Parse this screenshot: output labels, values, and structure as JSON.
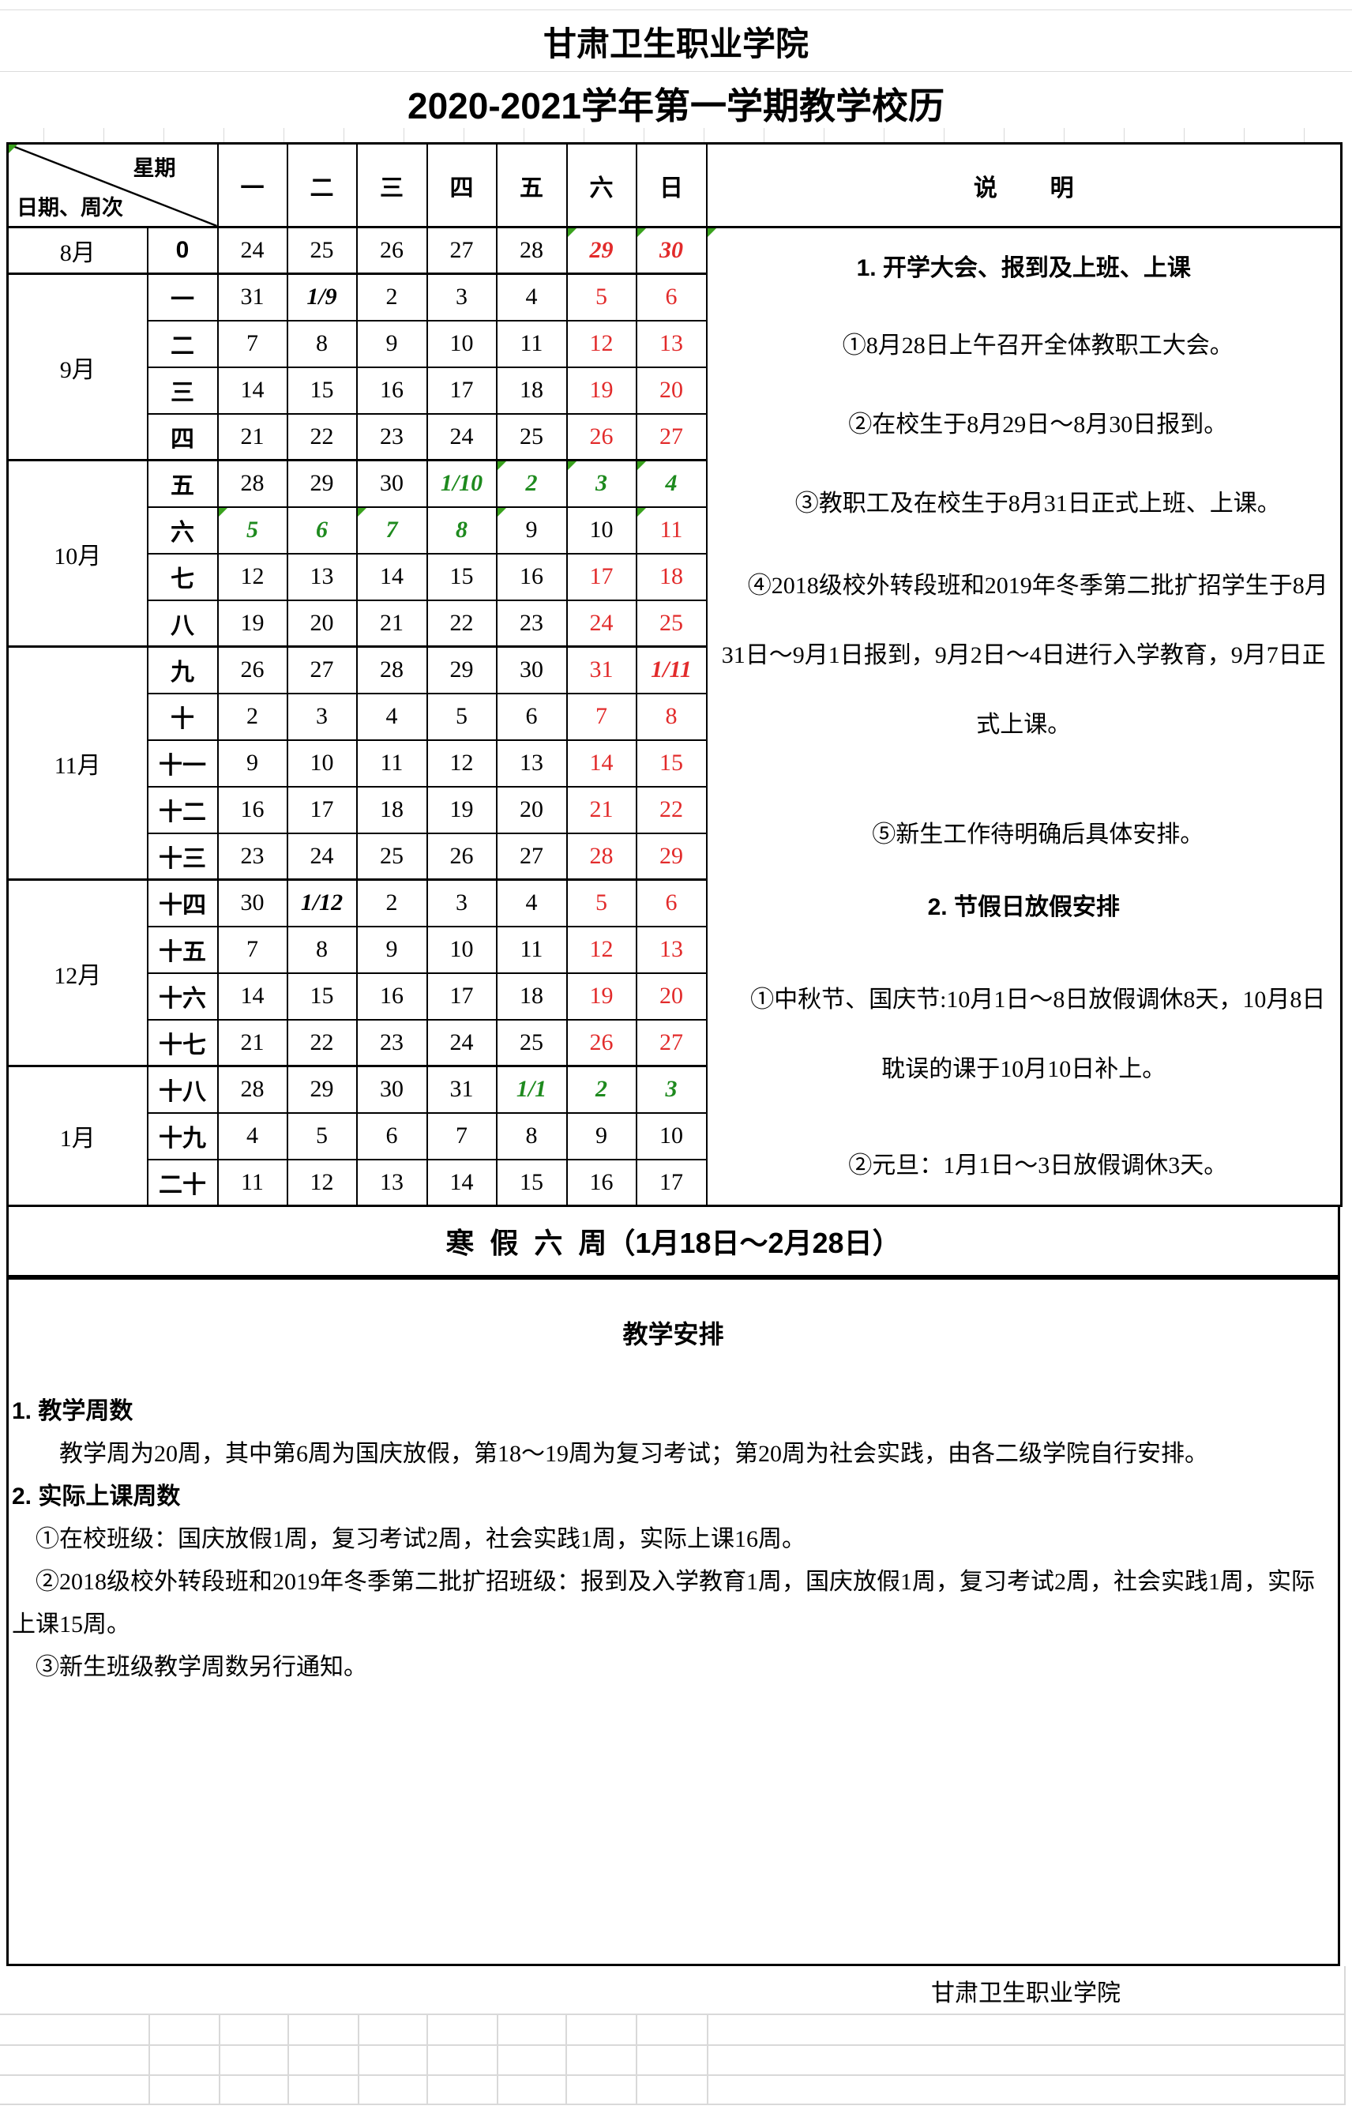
{
  "titles": {
    "school": "甘肃卫生职业学院",
    "calendar": "2020-2021学年第一学期教学校历"
  },
  "header": {
    "xingqi": "星期",
    "riqi_zhouci": "日期、周次",
    "days": [
      "一",
      "二",
      "三",
      "四",
      "五",
      "六",
      "日"
    ],
    "shuoming": "说        明"
  },
  "calendar": {
    "months": [
      {
        "label": "8月",
        "weeks": [
          {
            "w": "0",
            "d": [
              {
                "t": "24"
              },
              {
                "t": "25"
              },
              {
                "t": "26"
              },
              {
                "t": "27"
              },
              {
                "t": "28"
              },
              {
                "t": "29",
                "s": "ri",
                "m": 1
              },
              {
                "t": "30",
                "s": "ri",
                "m": 1
              }
            ]
          }
        ]
      },
      {
        "label": "9月",
        "weeks": [
          {
            "w": "一",
            "d": [
              {
                "t": "31"
              },
              {
                "t": "1/9",
                "s": "i"
              },
              {
                "t": "2"
              },
              {
                "t": "3"
              },
              {
                "t": "4"
              },
              {
                "t": "5",
                "s": "r"
              },
              {
                "t": "6",
                "s": "r"
              }
            ]
          },
          {
            "w": "二",
            "d": [
              {
                "t": "7"
              },
              {
                "t": "8"
              },
              {
                "t": "9"
              },
              {
                "t": "10"
              },
              {
                "t": "11"
              },
              {
                "t": "12",
                "s": "r"
              },
              {
                "t": "13",
                "s": "r"
              }
            ]
          },
          {
            "w": "三",
            "d": [
              {
                "t": "14"
              },
              {
                "t": "15"
              },
              {
                "t": "16"
              },
              {
                "t": "17"
              },
              {
                "t": "18"
              },
              {
                "t": "19",
                "s": "r"
              },
              {
                "t": "20",
                "s": "r"
              }
            ]
          },
          {
            "w": "四",
            "d": [
              {
                "t": "21"
              },
              {
                "t": "22"
              },
              {
                "t": "23"
              },
              {
                "t": "24"
              },
              {
                "t": "25"
              },
              {
                "t": "26",
                "s": "r"
              },
              {
                "t": "27",
                "s": "r"
              }
            ]
          }
        ]
      },
      {
        "label": "10月",
        "weeks": [
          {
            "w": "五",
            "d": [
              {
                "t": "28"
              },
              {
                "t": "29"
              },
              {
                "t": "30"
              },
              {
                "t": "1/10",
                "s": "gi"
              },
              {
                "t": "2",
                "s": "gi",
                "m": 1
              },
              {
                "t": "3",
                "s": "gi",
                "m": 1
              },
              {
                "t": "4",
                "s": "gi",
                "m": 1
              }
            ]
          },
          {
            "w": "六",
            "d": [
              {
                "t": "5",
                "s": "gi",
                "m": 1
              },
              {
                "t": "6",
                "s": "gi"
              },
              {
                "t": "7",
                "s": "gi",
                "m": 1
              },
              {
                "t": "8",
                "s": "gi"
              },
              {
                "t": "9",
                "m": 1
              },
              {
                "t": "10"
              },
              {
                "t": "11",
                "s": "r",
                "m": 1
              }
            ]
          },
          {
            "w": "七",
            "d": [
              {
                "t": "12"
              },
              {
                "t": "13"
              },
              {
                "t": "14"
              },
              {
                "t": "15"
              },
              {
                "t": "16"
              },
              {
                "t": "17",
                "s": "r"
              },
              {
                "t": "18",
                "s": "r"
              }
            ]
          },
          {
            "w": "八",
            "d": [
              {
                "t": "19"
              },
              {
                "t": "20"
              },
              {
                "t": "21"
              },
              {
                "t": "22"
              },
              {
                "t": "23"
              },
              {
                "t": "24",
                "s": "r"
              },
              {
                "t": "25",
                "s": "r"
              }
            ]
          }
        ]
      },
      {
        "label": "11月",
        "weeks": [
          {
            "w": "九",
            "d": [
              {
                "t": "26"
              },
              {
                "t": "27"
              },
              {
                "t": "28"
              },
              {
                "t": "29"
              },
              {
                "t": "30"
              },
              {
                "t": "31",
                "s": "r"
              },
              {
                "t": "1/11",
                "s": "ri"
              }
            ]
          },
          {
            "w": "十",
            "d": [
              {
                "t": "2"
              },
              {
                "t": "3"
              },
              {
                "t": "4"
              },
              {
                "t": "5"
              },
              {
                "t": "6"
              },
              {
                "t": "7",
                "s": "r"
              },
              {
                "t": "8",
                "s": "r"
              }
            ]
          },
          {
            "w": "十一",
            "d": [
              {
                "t": "9"
              },
              {
                "t": "10"
              },
              {
                "t": "11"
              },
              {
                "t": "12"
              },
              {
                "t": "13"
              },
              {
                "t": "14",
                "s": "r"
              },
              {
                "t": "15",
                "s": "r"
              }
            ]
          },
          {
            "w": "十二",
            "d": [
              {
                "t": "16"
              },
              {
                "t": "17"
              },
              {
                "t": "18"
              },
              {
                "t": "19"
              },
              {
                "t": "20"
              },
              {
                "t": "21",
                "s": "r"
              },
              {
                "t": "22",
                "s": "r"
              }
            ]
          },
          {
            "w": "十三",
            "d": [
              {
                "t": "23"
              },
              {
                "t": "24"
              },
              {
                "t": "25"
              },
              {
                "t": "26"
              },
              {
                "t": "27"
              },
              {
                "t": "28",
                "s": "r"
              },
              {
                "t": "29",
                "s": "r"
              }
            ]
          }
        ]
      },
      {
        "label": "12月",
        "weeks": [
          {
            "w": "十四",
            "d": [
              {
                "t": "30"
              },
              {
                "t": "1/12",
                "s": "i"
              },
              {
                "t": "2"
              },
              {
                "t": "3"
              },
              {
                "t": "4"
              },
              {
                "t": "5",
                "s": "r"
              },
              {
                "t": "6",
                "s": "r"
              }
            ]
          },
          {
            "w": "十五",
            "d": [
              {
                "t": "7"
              },
              {
                "t": "8"
              },
              {
                "t": "9"
              },
              {
                "t": "10"
              },
              {
                "t": "11"
              },
              {
                "t": "12",
                "s": "r"
              },
              {
                "t": "13",
                "s": "r"
              }
            ]
          },
          {
            "w": "十六",
            "d": [
              {
                "t": "14"
              },
              {
                "t": "15"
              },
              {
                "t": "16"
              },
              {
                "t": "17"
              },
              {
                "t": "18"
              },
              {
                "t": "19",
                "s": "r"
              },
              {
                "t": "20",
                "s": "r"
              }
            ]
          },
          {
            "w": "十七",
            "d": [
              {
                "t": "21"
              },
              {
                "t": "22"
              },
              {
                "t": "23"
              },
              {
                "t": "24"
              },
              {
                "t": "25"
              },
              {
                "t": "26",
                "s": "r"
              },
              {
                "t": "27",
                "s": "r"
              }
            ]
          }
        ]
      },
      {
        "label": "1月",
        "weeks": [
          {
            "w": "十八",
            "d": [
              {
                "t": "28"
              },
              {
                "t": "29"
              },
              {
                "t": "30"
              },
              {
                "t": "31"
              },
              {
                "t": "1/1",
                "s": "gi"
              },
              {
                "t": "2",
                "s": "gi"
              },
              {
                "t": "3",
                "s": "gi"
              }
            ]
          },
          {
            "w": "十九",
            "d": [
              {
                "t": "4"
              },
              {
                "t": "5"
              },
              {
                "t": "6"
              },
              {
                "t": "7"
              },
              {
                "t": "8"
              },
              {
                "t": "9"
              },
              {
                "t": "10"
              }
            ]
          },
          {
            "w": "二十",
            "d": [
              {
                "t": "11"
              },
              {
                "t": "12"
              },
              {
                "t": "13"
              },
              {
                "t": "14"
              },
              {
                "t": "15"
              },
              {
                "t": "16"
              },
              {
                "t": "17"
              }
            ]
          }
        ]
      }
    ]
  },
  "notes": {
    "paragraphs": [
      {
        "text": "1. 开学大会、报到及上班、上课",
        "bold": true,
        "marker": true,
        "mt": 0
      },
      {
        "text": "①8月28日上午召开全体教职工大会。",
        "indent": true,
        "mt": 10
      },
      {
        "text": "②在校生于8月29日～8月30日报到。",
        "indent": true,
        "mt": 12
      },
      {
        "text": "③教职工及在校生于8月31日正式上班、上课。",
        "indent": true,
        "mt": 12
      },
      {
        "text": "④2018级校外转段班和2019年冬季第二批扩招学生于8月31日～9月1日报到，9月2日～4日进行入学教育，9月7日正式上课。",
        "indent": true,
        "mt": 16
      },
      {
        "text": "⑤新生工作待明确后具体安排。",
        "indent": true,
        "mt": 51
      },
      {
        "text": "2. 节假日放假安排",
        "bold": true,
        "mt": 4
      },
      {
        "text": "①中秋节、国庆节:10月1日～8日放假调休8天，10月8日耽误的课于10月10日补上。",
        "indent": true,
        "mt": 29
      },
      {
        "text": "②元旦：1月1日～3日放假调休3天。",
        "indent": true,
        "mt": 34
      }
    ]
  },
  "winter_break": "寒  假  六  周（1月18日～2月28日）",
  "teaching": {
    "heading": "教学安排",
    "lines": [
      {
        "text": "1. 教学周数",
        "bold": true
      },
      {
        "text": "教学周为20周，其中第6周为国庆放假，第18～19周为复习考试；第20周为社会实践，由各二级学院自行安排。",
        "indent": 2
      },
      {
        "text": "2. 实际上课周数",
        "bold": true
      },
      {
        "text": "①在校班级：国庆放假1周，复习考试2周，社会实践1周，实际上课16周。",
        "indent": 1
      },
      {
        "text": "②2018级校外转段班和2019年冬季第二批扩招班级：报到及入学教育1周，国庆放假1周，复习考试2周，社会实践1周，实际上课15周。",
        "indent": 1
      },
      {
        "text": "③新生班级教学周数另行通知。",
        "indent": 1
      }
    ]
  },
  "footer": "甘肃卫生职业学院",
  "colors": {
    "red": "#e22b2b",
    "green": "#1e8a1e",
    "marker_green": "#3aa21e",
    "grid_gray": "#d9d9d9",
    "border_black": "#000000"
  }
}
